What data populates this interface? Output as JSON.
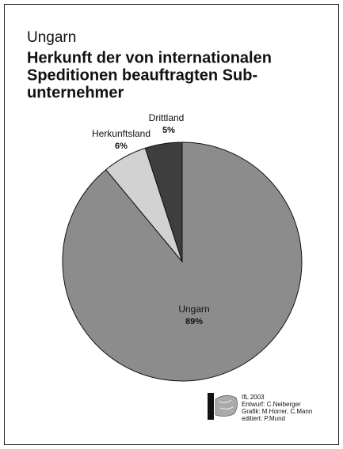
{
  "chart_data": {
    "type": "pie",
    "subtitle": "Ungarn",
    "title": [
      "Herkunft der von internationalen",
      "Speditionen beauftragten Sub-",
      "unternehmer"
    ],
    "categories": [
      "Ungarn",
      "Herkunftsland",
      "Drittland"
    ],
    "values": [
      89,
      6,
      5
    ],
    "value_labels": [
      "89%",
      "6%",
      "5%"
    ],
    "colors": [
      "#8c8c8c",
      "#d2d2d2",
      "#3e3e3e"
    ],
    "credits": [
      "IfL 2003",
      "Entwurf: C.Neiberger",
      "Grafik: M.Horrer, C.Mann",
      "editiert: P.Mund"
    ]
  }
}
